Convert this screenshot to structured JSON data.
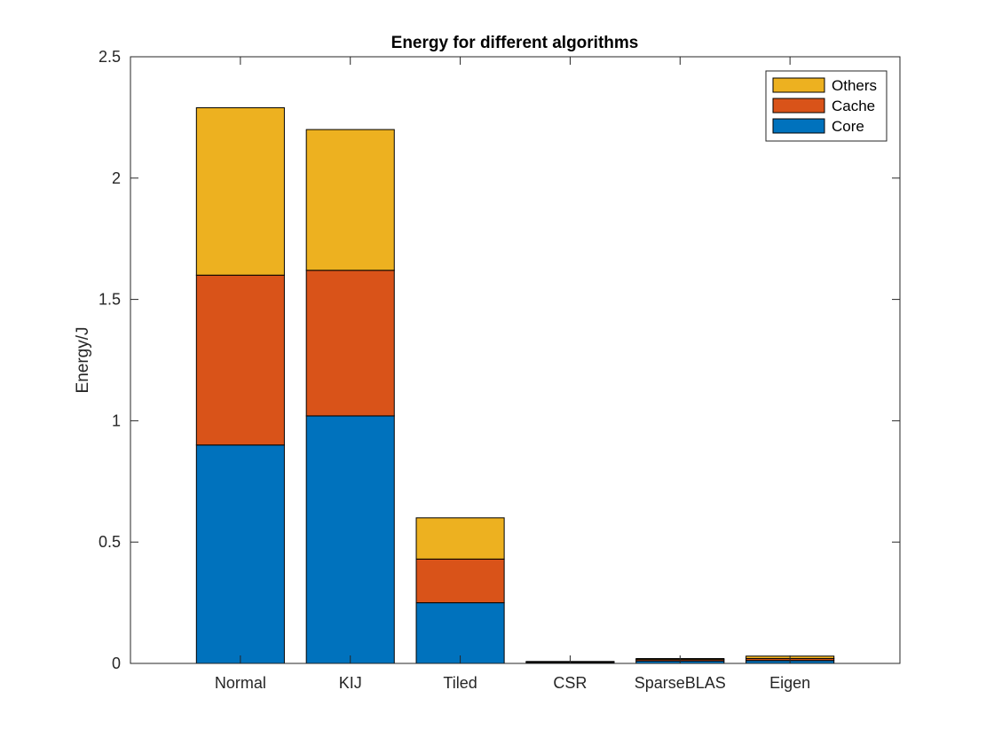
{
  "chart_data": {
    "type": "bar",
    "stacked": true,
    "title": "Energy for different algorithms",
    "xlabel": "",
    "ylabel": "Energy/J",
    "categories": [
      "Normal",
      "KIJ",
      "Tiled",
      "CSR",
      "SparseBLAS",
      "Eigen"
    ],
    "series": [
      {
        "name": "Core",
        "color": "#0072bd",
        "values": [
          0.9,
          1.02,
          0.25,
          0.004,
          0.01,
          0.012
        ]
      },
      {
        "name": "Cache",
        "color": "#d95319",
        "values": [
          0.7,
          0.6,
          0.18,
          0.002,
          0.006,
          0.008
        ]
      },
      {
        "name": "Others",
        "color": "#edb120",
        "values": [
          0.69,
          0.58,
          0.17,
          0.002,
          0.004,
          0.01
        ]
      }
    ],
    "ylim": [
      0,
      2.5
    ],
    "yticks": [
      0,
      0.5,
      1,
      1.5,
      2,
      2.5
    ],
    "ytick_labels": [
      "0",
      "0.5",
      "1",
      "1.5",
      "2",
      "2.5"
    ],
    "grid": false,
    "legend_position": "top-right",
    "legend_order": [
      "Others",
      "Cache",
      "Core"
    ]
  }
}
